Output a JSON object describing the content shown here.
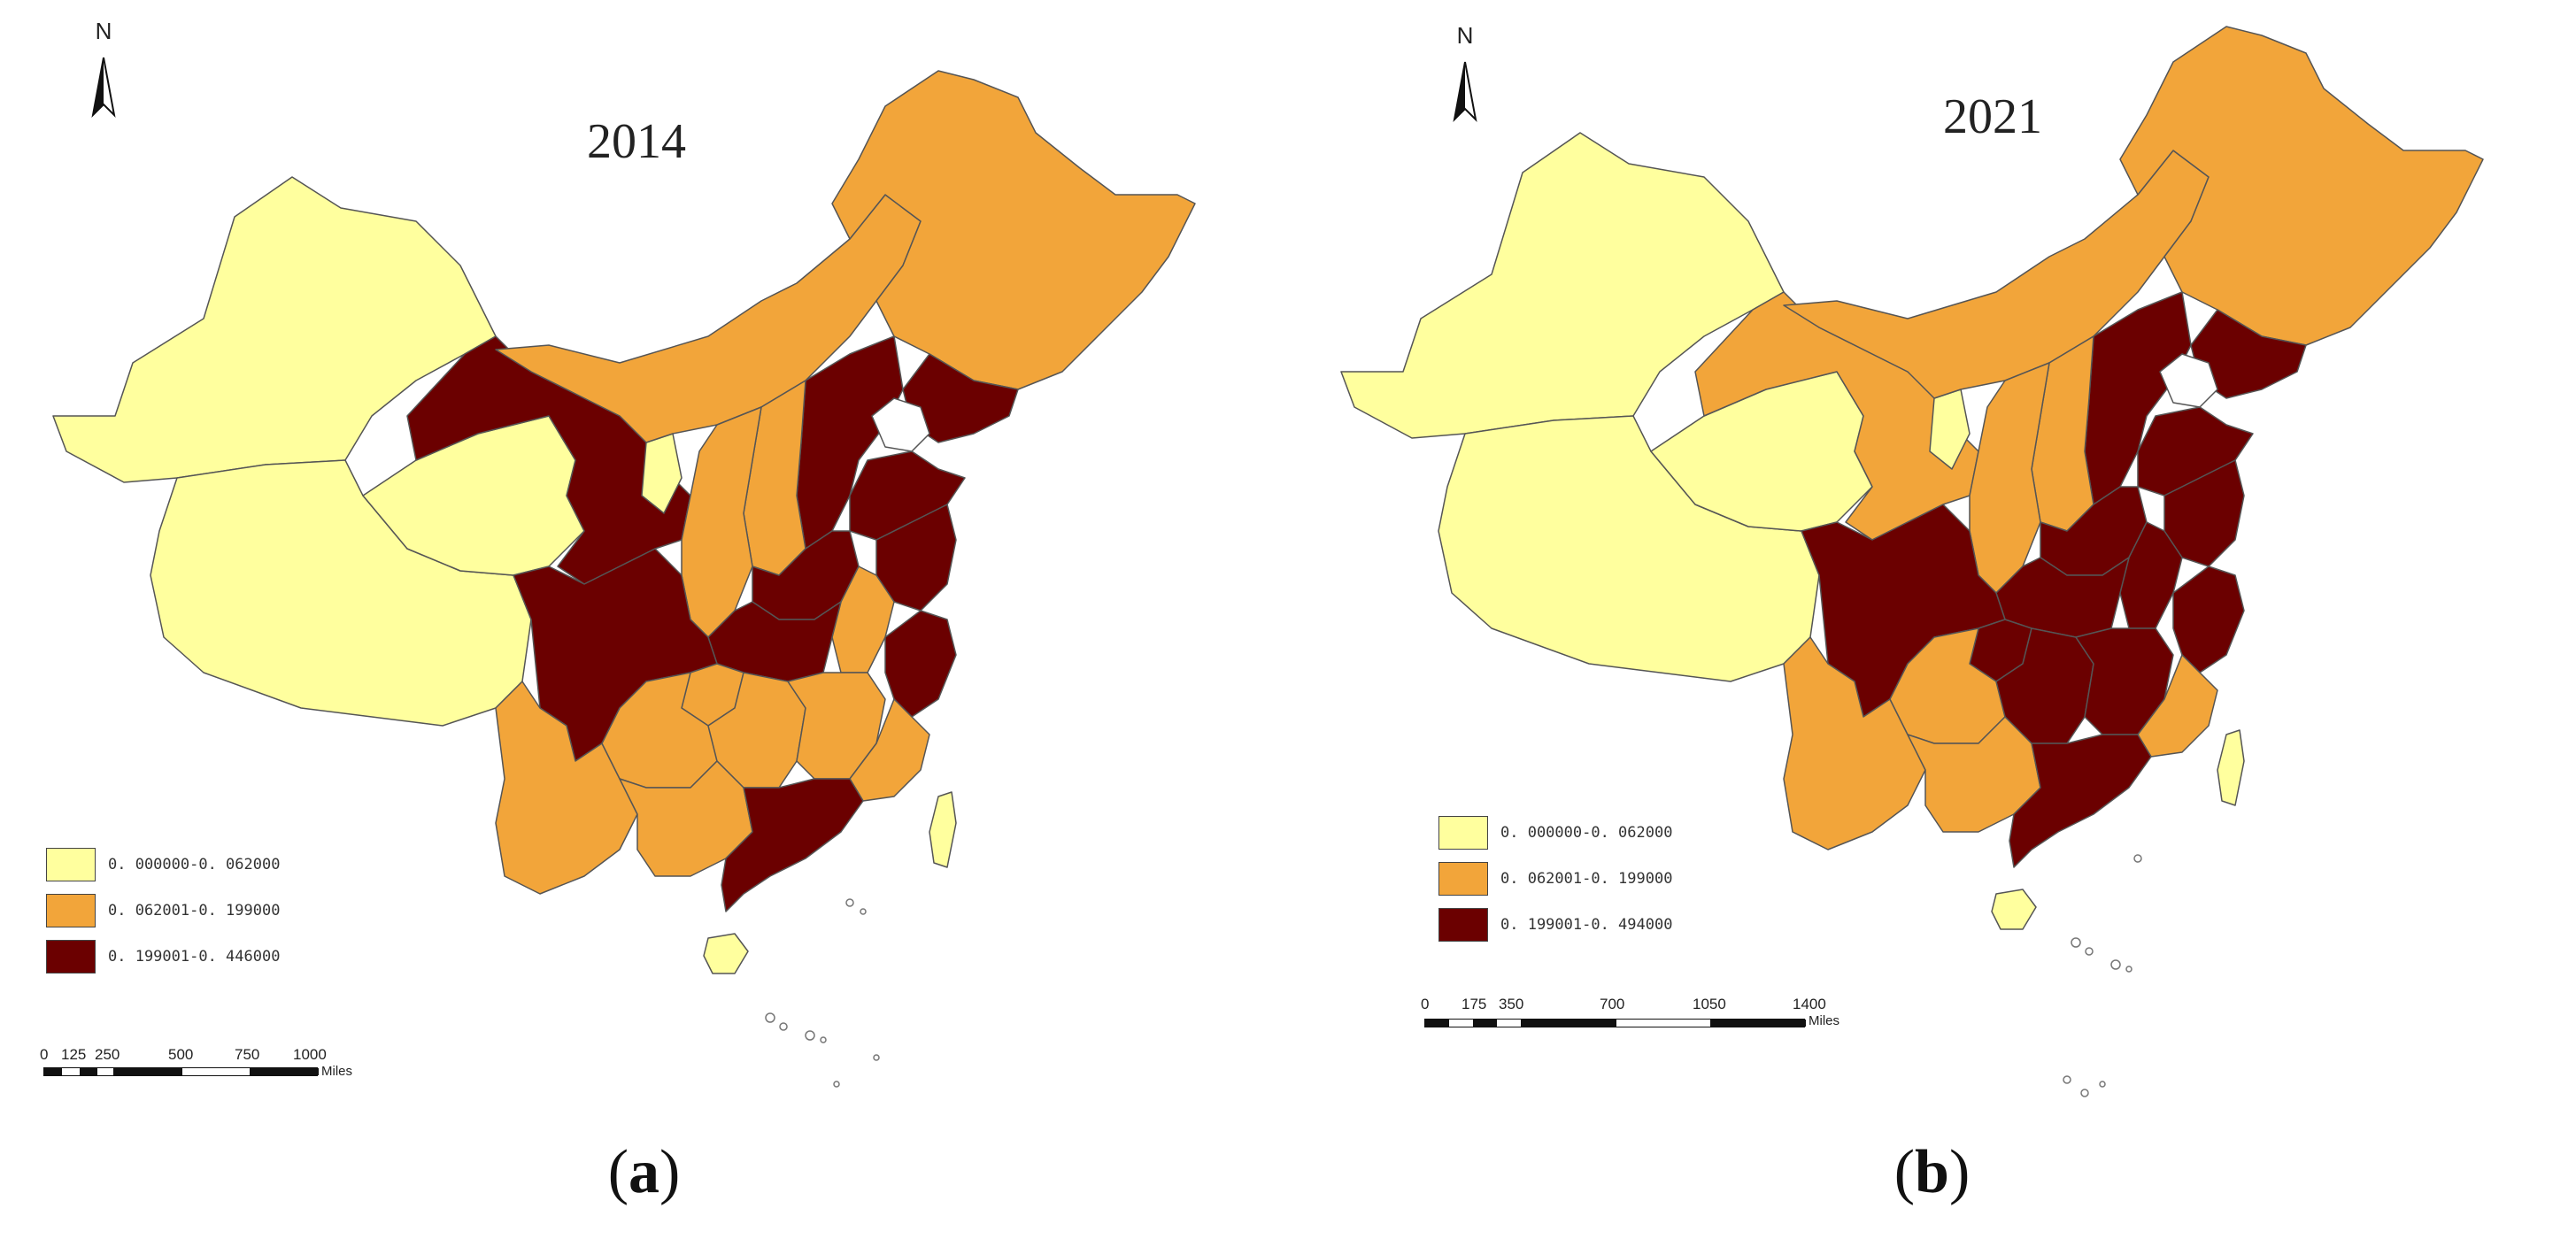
{
  "colors": {
    "class1": "#FFFF9E",
    "class2": "#F2A53A",
    "class3": "#6B0000",
    "border": "#555555"
  },
  "panels": [
    {
      "year": "2014",
      "north": "N",
      "legend": [
        {
          "label": "0. 000000-0. 062000",
          "color": "#FFFF9E"
        },
        {
          "label": "0. 062001-0. 199000",
          "color": "#F2A53A"
        },
        {
          "label": "0. 199001-0. 446000",
          "color": "#6B0000"
        }
      ],
      "scale": {
        "ticks": [
          "0",
          "125",
          "250",
          "500",
          "750",
          "1000"
        ],
        "unit": "Miles"
      },
      "caption_open": "(",
      "caption_letter": "a",
      "caption_close": ")"
    },
    {
      "year": "2021",
      "north": "N",
      "legend": [
        {
          "label": "0. 000000-0. 062000",
          "color": "#FFFF9E"
        },
        {
          "label": "0. 062001-0. 199000",
          "color": "#F2A53A"
        },
        {
          "label": "0. 199001-0. 494000",
          "color": "#6B0000"
        }
      ],
      "scale": {
        "ticks": [
          "0",
          "175",
          "350",
          "700",
          "1050",
          "1400"
        ],
        "unit": "Miles"
      },
      "caption_open": "(",
      "caption_letter": "b",
      "caption_close": ")"
    }
  ]
}
